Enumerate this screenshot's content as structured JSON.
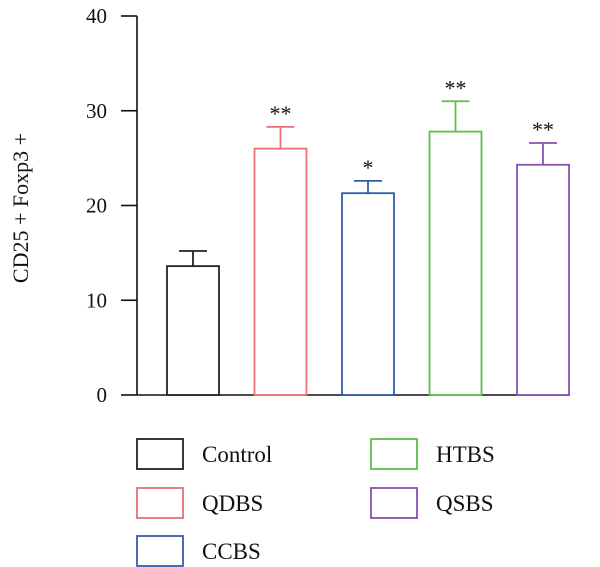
{
  "chart_data": {
    "type": "bar",
    "title": "",
    "xlabel": "",
    "ylabel": "CD25 + Foxp3 +",
    "ylim": [
      0,
      40
    ],
    "yticks": [
      0,
      10,
      20,
      30,
      40
    ],
    "grid": false,
    "legend_position": "bottom",
    "categories": [
      "Control",
      "QDBS",
      "CCBS",
      "HTBS",
      "QSBS"
    ],
    "values": [
      13.6,
      26.0,
      21.3,
      27.8,
      24.3
    ],
    "errors": [
      1.6,
      2.3,
      1.3,
      3.2,
      2.3
    ],
    "significance": [
      "",
      "**",
      "*",
      "**",
      "**"
    ],
    "colors": [
      "#222222",
      "#e8707a",
      "#2f5ea8",
      "#5cbf4a",
      "#8a4fb0"
    ]
  }
}
